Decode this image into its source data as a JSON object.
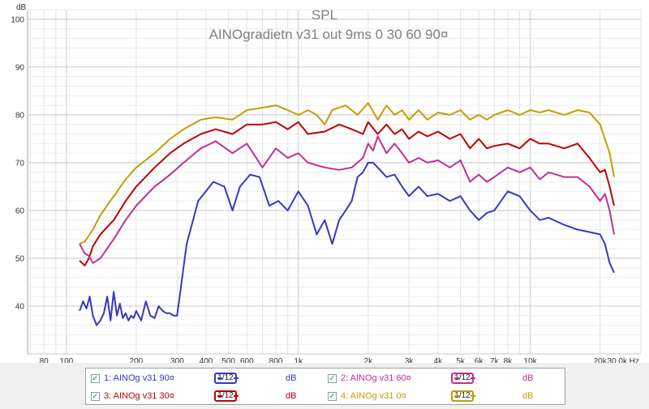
{
  "chart_data": {
    "type": "line",
    "title": "SPL",
    "subtitle": "AINOgradietn v31 out 9ms 0 30 60 90¤",
    "ylabel": "dB",
    "xlabel": "Hz",
    "xscale": "log",
    "xlim": [
      68,
      30000
    ],
    "ylim": [
      30,
      102
    ],
    "grid": true,
    "x_ticks": [
      {
        "v": 80,
        "l": "80"
      },
      {
        "v": 100,
        "l": "100"
      },
      {
        "v": 200,
        "l": "200"
      },
      {
        "v": 300,
        "l": "300"
      },
      {
        "v": 400,
        "l": "400"
      },
      {
        "v": 500,
        "l": "500"
      },
      {
        "v": 600,
        "l": "600"
      },
      {
        "v": 800,
        "l": "800"
      },
      {
        "v": 1000,
        "l": "1k"
      },
      {
        "v": 2000,
        "l": "2k"
      },
      {
        "v": 3000,
        "l": "3k"
      },
      {
        "v": 4000,
        "l": "4k"
      },
      {
        "v": 5000,
        "l": "5k"
      },
      {
        "v": 6000,
        "l": "6k"
      },
      {
        "v": 7000,
        "l": "7k"
      },
      {
        "v": 8000,
        "l": "8k"
      },
      {
        "v": 10000,
        "l": "10k"
      },
      {
        "v": 20000,
        "l": "20k"
      },
      {
        "v": 30000,
        "l": "30,0k Hz"
      }
    ],
    "y_ticks": [
      40,
      50,
      60,
      70,
      80,
      90,
      100
    ],
    "series": [
      {
        "name": "4: AINOg v31 0¤",
        "color": "#c0a000",
        "points": [
          [
            114,
            53
          ],
          [
            120,
            53.5
          ],
          [
            130,
            56
          ],
          [
            140,
            59
          ],
          [
            160,
            63
          ],
          [
            180,
            66.5
          ],
          [
            200,
            69
          ],
          [
            240,
            72
          ],
          [
            280,
            75
          ],
          [
            320,
            77
          ],
          [
            380,
            79
          ],
          [
            440,
            79.5
          ],
          [
            520,
            79
          ],
          [
            600,
            81
          ],
          [
            700,
            81.5
          ],
          [
            800,
            82
          ],
          [
            900,
            81
          ],
          [
            1000,
            80
          ],
          [
            1100,
            81
          ],
          [
            1200,
            80
          ],
          [
            1300,
            78
          ],
          [
            1400,
            81
          ],
          [
            1600,
            82
          ],
          [
            1800,
            80
          ],
          [
            2000,
            82.5
          ],
          [
            2200,
            79
          ],
          [
            2400,
            82
          ],
          [
            2600,
            80
          ],
          [
            2800,
            81
          ],
          [
            3000,
            79
          ],
          [
            3300,
            81
          ],
          [
            3600,
            79
          ],
          [
            4000,
            80.5
          ],
          [
            4500,
            80
          ],
          [
            5000,
            81
          ],
          [
            5500,
            79
          ],
          [
            6000,
            80
          ],
          [
            6500,
            79
          ],
          [
            7000,
            80
          ],
          [
            8000,
            81
          ],
          [
            9000,
            80
          ],
          [
            10000,
            81
          ],
          [
            11000,
            80.5
          ],
          [
            12000,
            81
          ],
          [
            14000,
            80
          ],
          [
            16000,
            81
          ],
          [
            18000,
            80.5
          ],
          [
            20000,
            78
          ],
          [
            22000,
            72
          ],
          [
            23000,
            67
          ]
        ]
      },
      {
        "name": "3: AINOg v31 30¤",
        "color": "#c00000",
        "points": [
          [
            114,
            49.5
          ],
          [
            120,
            48.5
          ],
          [
            125,
            50
          ],
          [
            130,
            52.5
          ],
          [
            140,
            55
          ],
          [
            160,
            58
          ],
          [
            180,
            62
          ],
          [
            200,
            65
          ],
          [
            240,
            69
          ],
          [
            280,
            72
          ],
          [
            320,
            74
          ],
          [
            380,
            76
          ],
          [
            440,
            77
          ],
          [
            520,
            76
          ],
          [
            600,
            78
          ],
          [
            700,
            78
          ],
          [
            800,
            78.5
          ],
          [
            900,
            77
          ],
          [
            1000,
            78.5
          ],
          [
            1100,
            76
          ],
          [
            1300,
            76.5
          ],
          [
            1500,
            78
          ],
          [
            1700,
            77
          ],
          [
            1900,
            76
          ],
          [
            2000,
            78.5
          ],
          [
            2200,
            76
          ],
          [
            2400,
            78
          ],
          [
            2600,
            76
          ],
          [
            2800,
            77
          ],
          [
            3000,
            75
          ],
          [
            3300,
            76.5
          ],
          [
            3600,
            75.5
          ],
          [
            4000,
            76.5
          ],
          [
            4500,
            75
          ],
          [
            5000,
            76
          ],
          [
            5500,
            73
          ],
          [
            6000,
            75
          ],
          [
            6500,
            73
          ],
          [
            7000,
            73.5
          ],
          [
            8000,
            74
          ],
          [
            9000,
            73
          ],
          [
            10000,
            75
          ],
          [
            11000,
            74
          ],
          [
            12000,
            74
          ],
          [
            14000,
            73
          ],
          [
            16000,
            74
          ],
          [
            18000,
            71
          ],
          [
            20000,
            68
          ],
          [
            21000,
            68.5
          ],
          [
            22000,
            65
          ],
          [
            23000,
            61
          ]
        ]
      },
      {
        "name": "2: AINOg v31 60¤",
        "color": "#c03090",
        "points": [
          [
            114,
            53
          ],
          [
            120,
            51
          ],
          [
            125,
            50.5
          ],
          [
            130,
            49
          ],
          [
            140,
            50
          ],
          [
            160,
            54
          ],
          [
            180,
            58
          ],
          [
            200,
            61
          ],
          [
            240,
            65
          ],
          [
            280,
            67.5
          ],
          [
            320,
            70
          ],
          [
            380,
            73
          ],
          [
            440,
            74.5
          ],
          [
            520,
            72
          ],
          [
            600,
            74
          ],
          [
            700,
            69
          ],
          [
            800,
            73
          ],
          [
            900,
            71
          ],
          [
            1000,
            72
          ],
          [
            1100,
            70
          ],
          [
            1300,
            69
          ],
          [
            1500,
            68.5
          ],
          [
            1700,
            69
          ],
          [
            1900,
            71
          ],
          [
            2000,
            74
          ],
          [
            2100,
            72.5
          ],
          [
            2200,
            75.5
          ],
          [
            2400,
            72
          ],
          [
            2600,
            74
          ],
          [
            2800,
            72
          ],
          [
            3000,
            70
          ],
          [
            3300,
            71
          ],
          [
            3600,
            70
          ],
          [
            4000,
            70.5
          ],
          [
            4500,
            69
          ],
          [
            5000,
            70.5
          ],
          [
            5500,
            66
          ],
          [
            6000,
            67.5
          ],
          [
            6500,
            66
          ],
          [
            7000,
            67
          ],
          [
            8000,
            69
          ],
          [
            9000,
            68
          ],
          [
            10000,
            69
          ],
          [
            11000,
            66.5
          ],
          [
            12000,
            68
          ],
          [
            14000,
            67
          ],
          [
            16000,
            67
          ],
          [
            18000,
            65
          ],
          [
            20000,
            62
          ],
          [
            21000,
            63.5
          ],
          [
            22000,
            60
          ],
          [
            23000,
            55
          ]
        ]
      },
      {
        "name": "1: AINOg v31 90¤",
        "color": "#3838c0",
        "points": [
          [
            114,
            39
          ],
          [
            118,
            41
          ],
          [
            122,
            39.5
          ],
          [
            126,
            42
          ],
          [
            130,
            38
          ],
          [
            135,
            36
          ],
          [
            140,
            37
          ],
          [
            145,
            38.5
          ],
          [
            150,
            42
          ],
          [
            155,
            37
          ],
          [
            160,
            43
          ],
          [
            165,
            38
          ],
          [
            170,
            40.5
          ],
          [
            175,
            37.5
          ],
          [
            180,
            38.5
          ],
          [
            185,
            37
          ],
          [
            190,
            38
          ],
          [
            195,
            37.5
          ],
          [
            200,
            39
          ],
          [
            210,
            37
          ],
          [
            220,
            41
          ],
          [
            230,
            38
          ],
          [
            240,
            37.5
          ],
          [
            250,
            40
          ],
          [
            260,
            39
          ],
          [
            270,
            38.5
          ],
          [
            280,
            38.5
          ],
          [
            290,
            38
          ],
          [
            300,
            38
          ],
          [
            330,
            53
          ],
          [
            370,
            62
          ],
          [
            430,
            66
          ],
          [
            480,
            65
          ],
          [
            520,
            60
          ],
          [
            560,
            65
          ],
          [
            620,
            67.5
          ],
          [
            680,
            67
          ],
          [
            750,
            61
          ],
          [
            820,
            62
          ],
          [
            900,
            60
          ],
          [
            1000,
            64
          ],
          [
            1100,
            61
          ],
          [
            1200,
            55
          ],
          [
            1300,
            58
          ],
          [
            1400,
            53
          ],
          [
            1500,
            58
          ],
          [
            1600,
            60
          ],
          [
            1700,
            62
          ],
          [
            1800,
            67
          ],
          [
            1900,
            68
          ],
          [
            2000,
            70
          ],
          [
            2100,
            70
          ],
          [
            2200,
            69
          ],
          [
            2400,
            67
          ],
          [
            2600,
            67.5
          ],
          [
            2800,
            65
          ],
          [
            3000,
            63
          ],
          [
            3300,
            65
          ],
          [
            3600,
            63
          ],
          [
            4000,
            63.5
          ],
          [
            4500,
            62
          ],
          [
            5000,
            63
          ],
          [
            5500,
            60
          ],
          [
            6000,
            58
          ],
          [
            6500,
            59.5
          ],
          [
            7000,
            60
          ],
          [
            8000,
            64
          ],
          [
            9000,
            63
          ],
          [
            10000,
            60
          ],
          [
            11000,
            58
          ],
          [
            12000,
            58.5
          ],
          [
            14000,
            57
          ],
          [
            16000,
            56
          ],
          [
            18000,
            55.5
          ],
          [
            20000,
            55
          ],
          [
            21000,
            53
          ],
          [
            22000,
            49
          ],
          [
            23000,
            47
          ]
        ]
      }
    ]
  },
  "legend": {
    "items": [
      {
        "label": "1: AINOg v31 90¤",
        "color": "#3838c0",
        "smoothing": "1/12",
        "unit": "dB",
        "checked": "✓"
      },
      {
        "label": "2: AINOg v31 60¤",
        "color": "#c03090",
        "smoothing": "1/12",
        "unit": "dB",
        "checked": "✓"
      },
      {
        "label": "3: AINOg v31 30¤",
        "color": "#c00000",
        "smoothing": "1/12",
        "unit": "dB",
        "checked": "✓"
      },
      {
        "label": "4: AINOg v31 0¤",
        "color": "#c0a000",
        "smoothing": "1/12",
        "unit": "dB",
        "checked": "✓"
      }
    ]
  }
}
